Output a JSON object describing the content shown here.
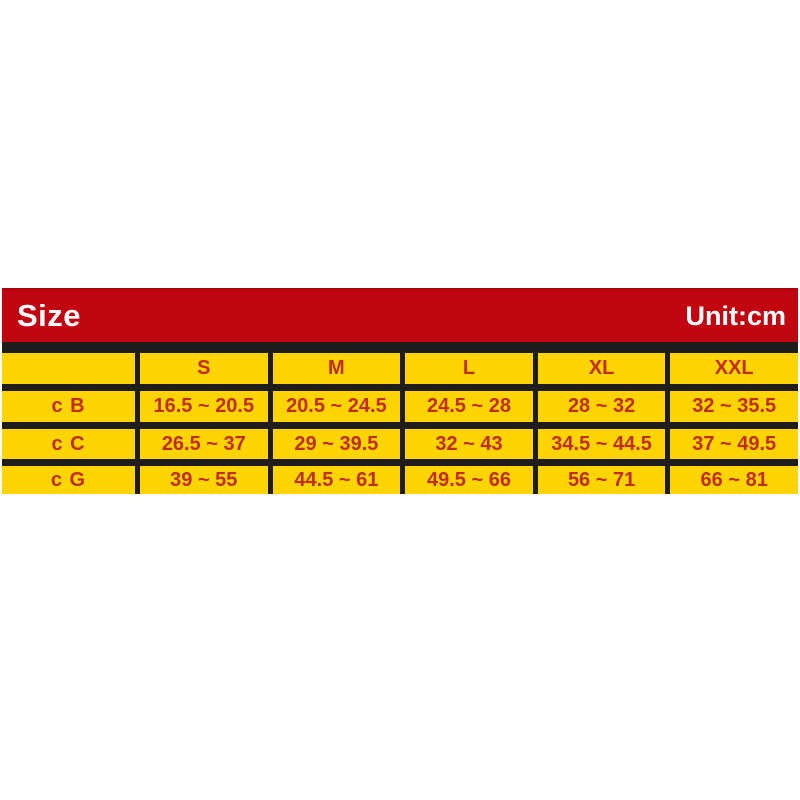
{
  "colors": {
    "page_bg": "#ffffff",
    "title_bar_bg": "#c10511",
    "title_text": "#ffffff",
    "table_border": "#1f1d1b",
    "cell_bg": "#fed402",
    "cell_text": "#c02d12"
  },
  "header": {
    "title": "Size",
    "unit_label": "Unit:cm"
  },
  "chart_data": {
    "type": "table",
    "title": "Size",
    "unit": "cm",
    "columns": [
      "",
      "S",
      "M",
      "L",
      "XL",
      "XXL"
    ],
    "rows": [
      {
        "label": "c B",
        "values": [
          "16.5 ~ 20.5",
          "20.5 ~ 24.5",
          "24.5 ~ 28",
          "28 ~ 32",
          "32 ~ 35.5"
        ]
      },
      {
        "label": "c C",
        "values": [
          "26.5 ~ 37",
          "29 ~ 39.5",
          "32 ~ 43",
          "34.5 ~ 44.5",
          "37 ~ 49.5"
        ]
      },
      {
        "label": "c G",
        "values": [
          "39 ~ 55",
          "44.5 ~ 61",
          "49.5 ~ 66",
          "56 ~ 71",
          "66 ~ 81"
        ]
      }
    ]
  }
}
